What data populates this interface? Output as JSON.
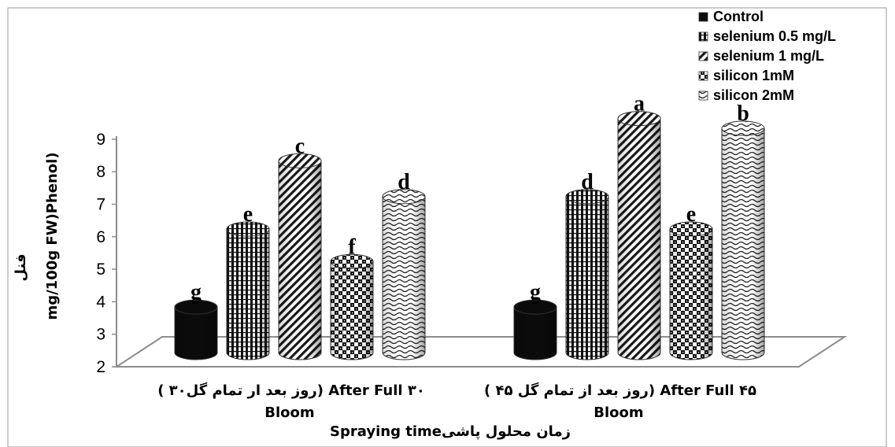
{
  "chart_data": {
    "type": "bar",
    "ylabel_native": "فنل",
    "ylabel": "mg/100g FW)Phenol)",
    "xlabel": "Spraying timeزمان محلول پاشی",
    "ylim": [
      2,
      9
    ],
    "yticks": [
      "2",
      "3",
      "4",
      "5",
      "6",
      "7",
      "8",
      "9"
    ],
    "categories": [
      {
        "line1": "( ۳۰روز بعد ار تمام گل)  After Full ۳۰",
        "line2": "Bloom"
      },
      {
        "line1": "( ۴۵ روز بعد از تمام گل)  After Full ۴۵",
        "line2": "Bloom"
      }
    ],
    "legend_position": "top-right",
    "grid": false,
    "series": [
      {
        "name": "Control",
        "values": [
          3.4,
          3.4
        ],
        "labels": [
          "g",
          "g"
        ]
      },
      {
        "name": "selenium 0.5 mg/L",
        "values": [
          5.8,
          6.8
        ],
        "labels": [
          "e",
          "d"
        ]
      },
      {
        "name": "selenium 1 mg/L",
        "values": [
          7.9,
          9.2
        ],
        "labels": [
          "c",
          "a"
        ]
      },
      {
        "name": "silicon 1mM",
        "values": [
          4.8,
          5.8
        ],
        "labels": [
          "f",
          "e"
        ]
      },
      {
        "name": "silicon 2mM",
        "values": [
          6.8,
          8.9
        ],
        "labels": [
          "d",
          "b"
        ]
      }
    ]
  }
}
